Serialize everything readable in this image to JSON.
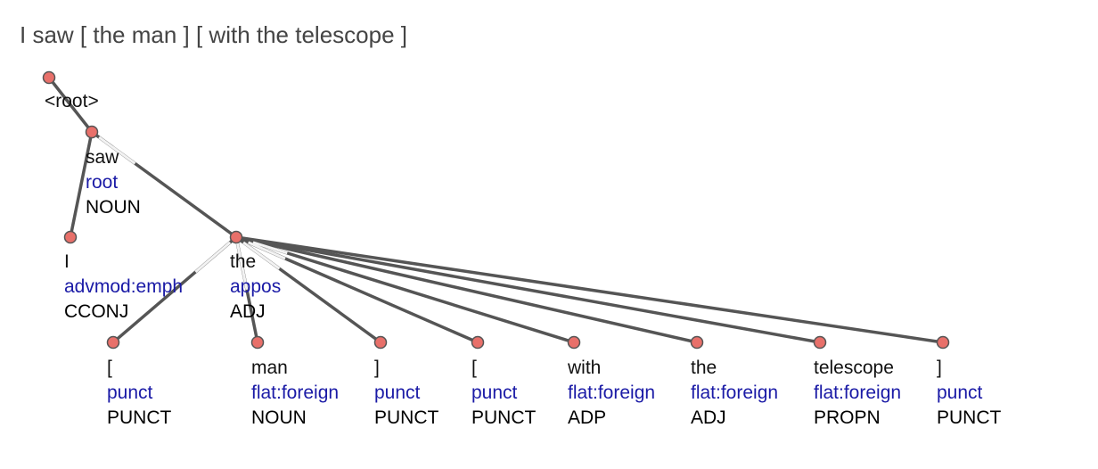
{
  "sentence": "I saw [ the man ] [ with the telescope ]",
  "colors": {
    "node_fill": "#e8706a",
    "edge": "#555555",
    "form": "#111111",
    "deprel": "#1a1aa6",
    "upos": "#1f4f4f",
    "sentence": "#444444"
  },
  "tokens": [
    {
      "id": "root",
      "form": "<root>",
      "deprel": "",
      "upos": "",
      "head": null
    },
    {
      "id": "saw",
      "form": "saw",
      "deprel": "root",
      "upos": "NOUN",
      "head": "root"
    },
    {
      "id": "I",
      "form": "I",
      "deprel": "advmod:emph",
      "upos": "CCONJ",
      "head": "saw"
    },
    {
      "id": "the1",
      "form": "the",
      "deprel": "appos",
      "upos": "ADJ",
      "head": "saw"
    },
    {
      "id": "lb1",
      "form": "[",
      "deprel": "punct",
      "upos": "PUNCT",
      "head": "the1"
    },
    {
      "id": "man",
      "form": "man",
      "deprel": "flat:foreign",
      "upos": "NOUN",
      "head": "the1"
    },
    {
      "id": "rb1",
      "form": "]",
      "deprel": "punct",
      "upos": "PUNCT",
      "head": "the1"
    },
    {
      "id": "lb2",
      "form": "[",
      "deprel": "punct",
      "upos": "PUNCT",
      "head": "the1"
    },
    {
      "id": "with",
      "form": "with",
      "deprel": "flat:foreign",
      "upos": "ADP",
      "head": "the1"
    },
    {
      "id": "the2",
      "form": "the",
      "deprel": "flat:foreign",
      "upos": "ADJ",
      "head": "the1"
    },
    {
      "id": "telescope",
      "form": "telescope",
      "deprel": "flat:foreign",
      "upos": "PROPN",
      "head": "the1"
    },
    {
      "id": "rb2",
      "form": "]",
      "deprel": "punct",
      "upos": "PUNCT",
      "head": "the1"
    }
  ]
}
